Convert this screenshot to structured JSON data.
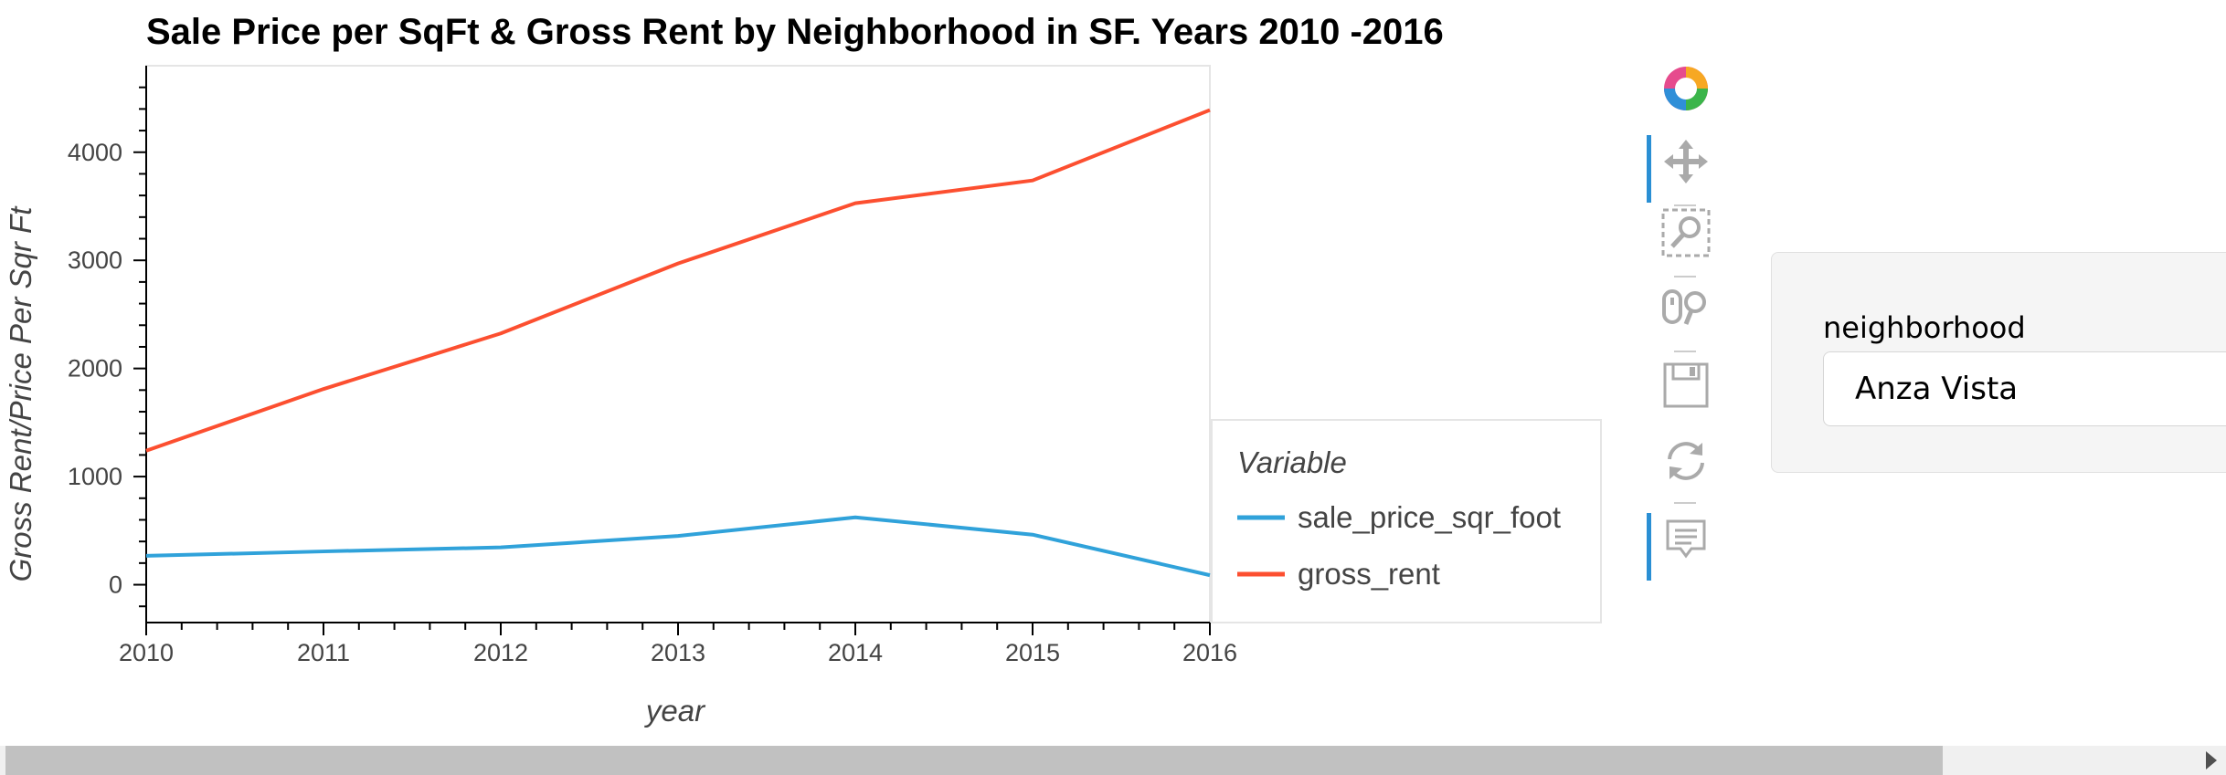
{
  "chart_data": {
    "type": "line",
    "title": "Sale Price per SqFt & Gross Rent by Neighborhood in SF. Years 2010 -2016",
    "xlabel": "year",
    "ylabel": "Gross Rent/Price Per Sqr Ft",
    "x": [
      2010,
      2011,
      2012,
      2013,
      2014,
      2015,
      2016
    ],
    "xlim": [
      2010,
      2016
    ],
    "ylim": [
      -350,
      4800
    ],
    "yticks": [
      0,
      1000,
      2000,
      3000,
      4000
    ],
    "series": [
      {
        "name": "sale_price_sqr_foot",
        "color": "#30a2da",
        "values": [
          267,
          308,
          345,
          451,
          623,
          463,
          88
        ]
      },
      {
        "name": "gross_rent",
        "color": "#fc4f30",
        "values": [
          1239,
          1810,
          2324,
          2971,
          3528,
          3739,
          4390
        ]
      }
    ],
    "legend": {
      "title": "Variable",
      "placement": "right"
    },
    "grid": false
  },
  "toolbar": {
    "tools": [
      {
        "icon": "bokeh-logo-icon"
      },
      {
        "icon": "pan-icon",
        "active": true
      },
      {
        "icon": "box-zoom-icon"
      },
      {
        "icon": "wheel-zoom-icon"
      },
      {
        "icon": "save-icon"
      },
      {
        "icon": "reset-icon"
      },
      {
        "icon": "hover-icon",
        "active": true
      }
    ]
  },
  "widget": {
    "label": "neighborhood",
    "selected": "Anza Vista"
  }
}
